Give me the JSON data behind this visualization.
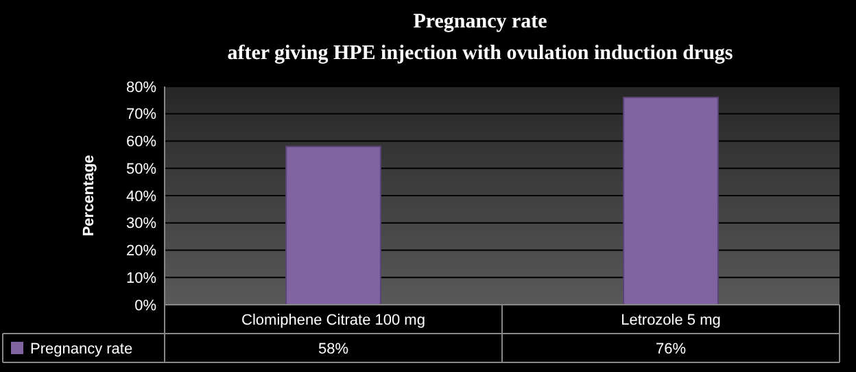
{
  "chart_data": {
    "type": "bar",
    "title": "Pregnancy rate",
    "subtitle": "after giving HPE injection with ovulation induction drugs",
    "ylabel": "Percentage",
    "categories": [
      "Clomiphene Citrate 100 mg",
      "Letrozole 5 mg"
    ],
    "series": [
      {
        "name": "Pregnancy rate",
        "color": "#8064a2",
        "values": [
          58,
          76
        ],
        "value_labels": [
          "58%",
          "76%"
        ]
      }
    ],
    "ylim": [
      0,
      80
    ],
    "yticks": [
      {
        "value": 0,
        "label": "0%"
      },
      {
        "value": 10,
        "label": "10%"
      },
      {
        "value": 20,
        "label": "20%"
      },
      {
        "value": 30,
        "label": "30%"
      },
      {
        "value": 40,
        "label": "40%"
      },
      {
        "value": 50,
        "label": "50%"
      },
      {
        "value": 60,
        "label": "60%"
      },
      {
        "value": 70,
        "label": "70%"
      },
      {
        "value": 80,
        "label": "80%"
      }
    ],
    "grid": "y",
    "legend": "bottom"
  }
}
